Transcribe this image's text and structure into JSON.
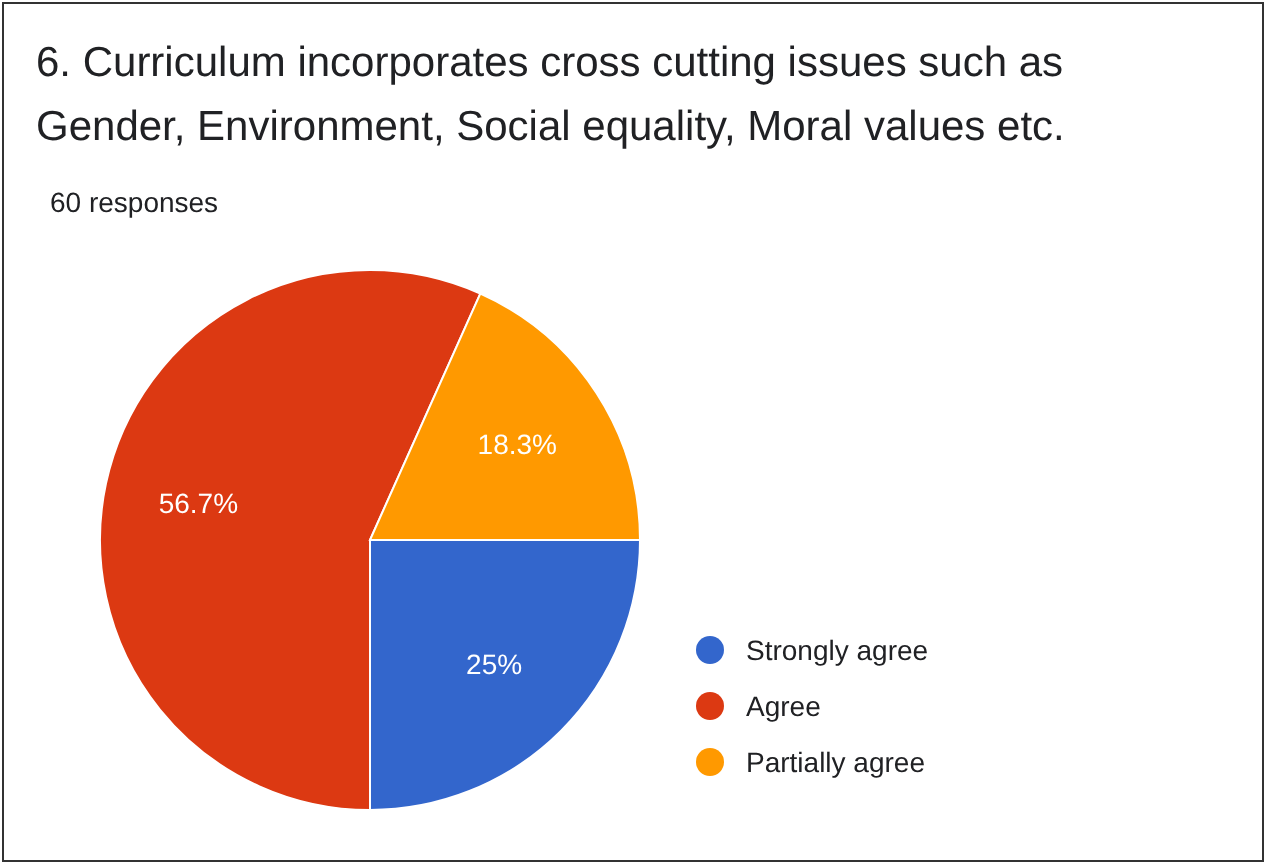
{
  "chart_data": {
    "type": "pie",
    "title": "6. Curriculum incorporates cross cutting issues such as Gender, Environment, Social equality, Moral values etc.",
    "subtitle": "60 responses",
    "categories": [
      "Strongly agree",
      "Agree",
      "Partially agree"
    ],
    "values": [
      25,
      56.7,
      18.3
    ],
    "colors": [
      "#3366cc",
      "#dc3912",
      "#ff9900"
    ],
    "value_labels": [
      "25%",
      "56.7%",
      "18.3%"
    ],
    "legend": "right"
  }
}
